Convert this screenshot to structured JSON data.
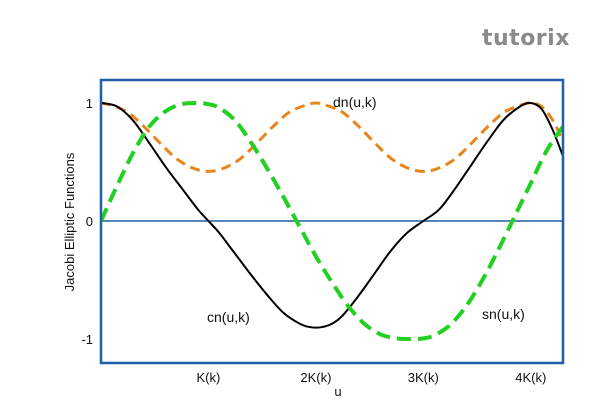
{
  "brand": {
    "logo_text": "tutorix"
  },
  "chart_data": {
    "type": "line",
    "title": "",
    "xlabel": "u",
    "ylabel": "Jacobi Elliptic Functions",
    "x_unit": "K",
    "xlim": [
      0,
      4.3
    ],
    "ylim": [
      -1.2,
      1.05
    ],
    "x_ticks": [
      {
        "value": 1,
        "label": "K(k)"
      },
      {
        "value": 2,
        "label": "2K(k)"
      },
      {
        "value": 3,
        "label": "3K(k)"
      },
      {
        "value": 4,
        "label": "4K(k)"
      }
    ],
    "y_ticks": [
      {
        "value": 1,
        "label": "1"
      },
      {
        "value": 0,
        "label": "0"
      },
      {
        "value": -1,
        "label": "-1"
      }
    ],
    "grid": false,
    "reference_line": {
      "y": 0,
      "color": "#1f5fa8"
    },
    "frame_color": "#1f5fa8",
    "series": [
      {
        "name": "cn(u,k)",
        "color": "#000000",
        "dash": "solid",
        "label_position": "lower-left",
        "x": [
          0,
          0.15,
          0.3,
          0.45,
          0.6,
          0.75,
          0.9,
          1.0,
          1.1,
          1.25,
          1.4,
          1.55,
          1.7,
          1.85,
          1.95,
          2.05,
          2.15,
          2.25,
          2.4,
          2.55,
          2.7,
          2.85,
          3.0,
          3.15,
          3.3,
          3.45,
          3.6,
          3.75,
          3.9,
          4.0,
          4.1,
          4.2,
          4.3
        ],
        "y": [
          1.0,
          0.97,
          0.85,
          0.66,
          0.46,
          0.28,
          0.1,
          0.0,
          -0.1,
          -0.28,
          -0.46,
          -0.63,
          -0.78,
          -0.87,
          -0.9,
          -0.9,
          -0.87,
          -0.8,
          -0.63,
          -0.44,
          -0.25,
          -0.1,
          0.0,
          0.1,
          0.28,
          0.48,
          0.68,
          0.86,
          0.97,
          1.0,
          0.95,
          0.78,
          0.55
        ]
      },
      {
        "name": "sn(u,k)",
        "color": "#22d022",
        "dash": "dashed",
        "label_position": "lower-right",
        "x": [
          0,
          0.15,
          0.3,
          0.45,
          0.6,
          0.75,
          0.9,
          1.0,
          1.1,
          1.25,
          1.4,
          1.55,
          1.7,
          1.85,
          2.0,
          2.15,
          2.3,
          2.45,
          2.6,
          2.75,
          2.9,
          3.0,
          3.1,
          3.25,
          3.4,
          3.55,
          3.7,
          3.85,
          4.0,
          4.15,
          4.3
        ],
        "y": [
          0.0,
          0.3,
          0.58,
          0.8,
          0.93,
          0.99,
          1.0,
          0.99,
          0.96,
          0.85,
          0.66,
          0.44,
          0.2,
          -0.05,
          -0.3,
          -0.52,
          -0.72,
          -0.87,
          -0.96,
          -0.995,
          -1.0,
          -0.995,
          -0.97,
          -0.88,
          -0.72,
          -0.5,
          -0.24,
          0.04,
          0.32,
          0.6,
          0.8
        ]
      },
      {
        "name": "dn(u,k)",
        "color": "#e8851a",
        "dash": "dashed",
        "label_position": "top",
        "x": [
          0,
          0.1,
          0.25,
          0.4,
          0.55,
          0.7,
          0.85,
          1.0,
          1.15,
          1.3,
          1.45,
          1.6,
          1.75,
          1.9,
          2.0,
          2.1,
          2.25,
          2.4,
          2.55,
          2.7,
          2.85,
          3.0,
          3.15,
          3.3,
          3.45,
          3.6,
          3.75,
          3.9,
          4.0,
          4.1,
          4.2,
          4.3
        ],
        "y": [
          1.0,
          0.98,
          0.92,
          0.8,
          0.66,
          0.53,
          0.45,
          0.42,
          0.45,
          0.53,
          0.66,
          0.8,
          0.92,
          0.98,
          1.0,
          0.98,
          0.92,
          0.8,
          0.66,
          0.53,
          0.45,
          0.42,
          0.45,
          0.53,
          0.66,
          0.8,
          0.92,
          0.98,
          1.0,
          0.97,
          0.86,
          0.68
        ]
      }
    ]
  }
}
